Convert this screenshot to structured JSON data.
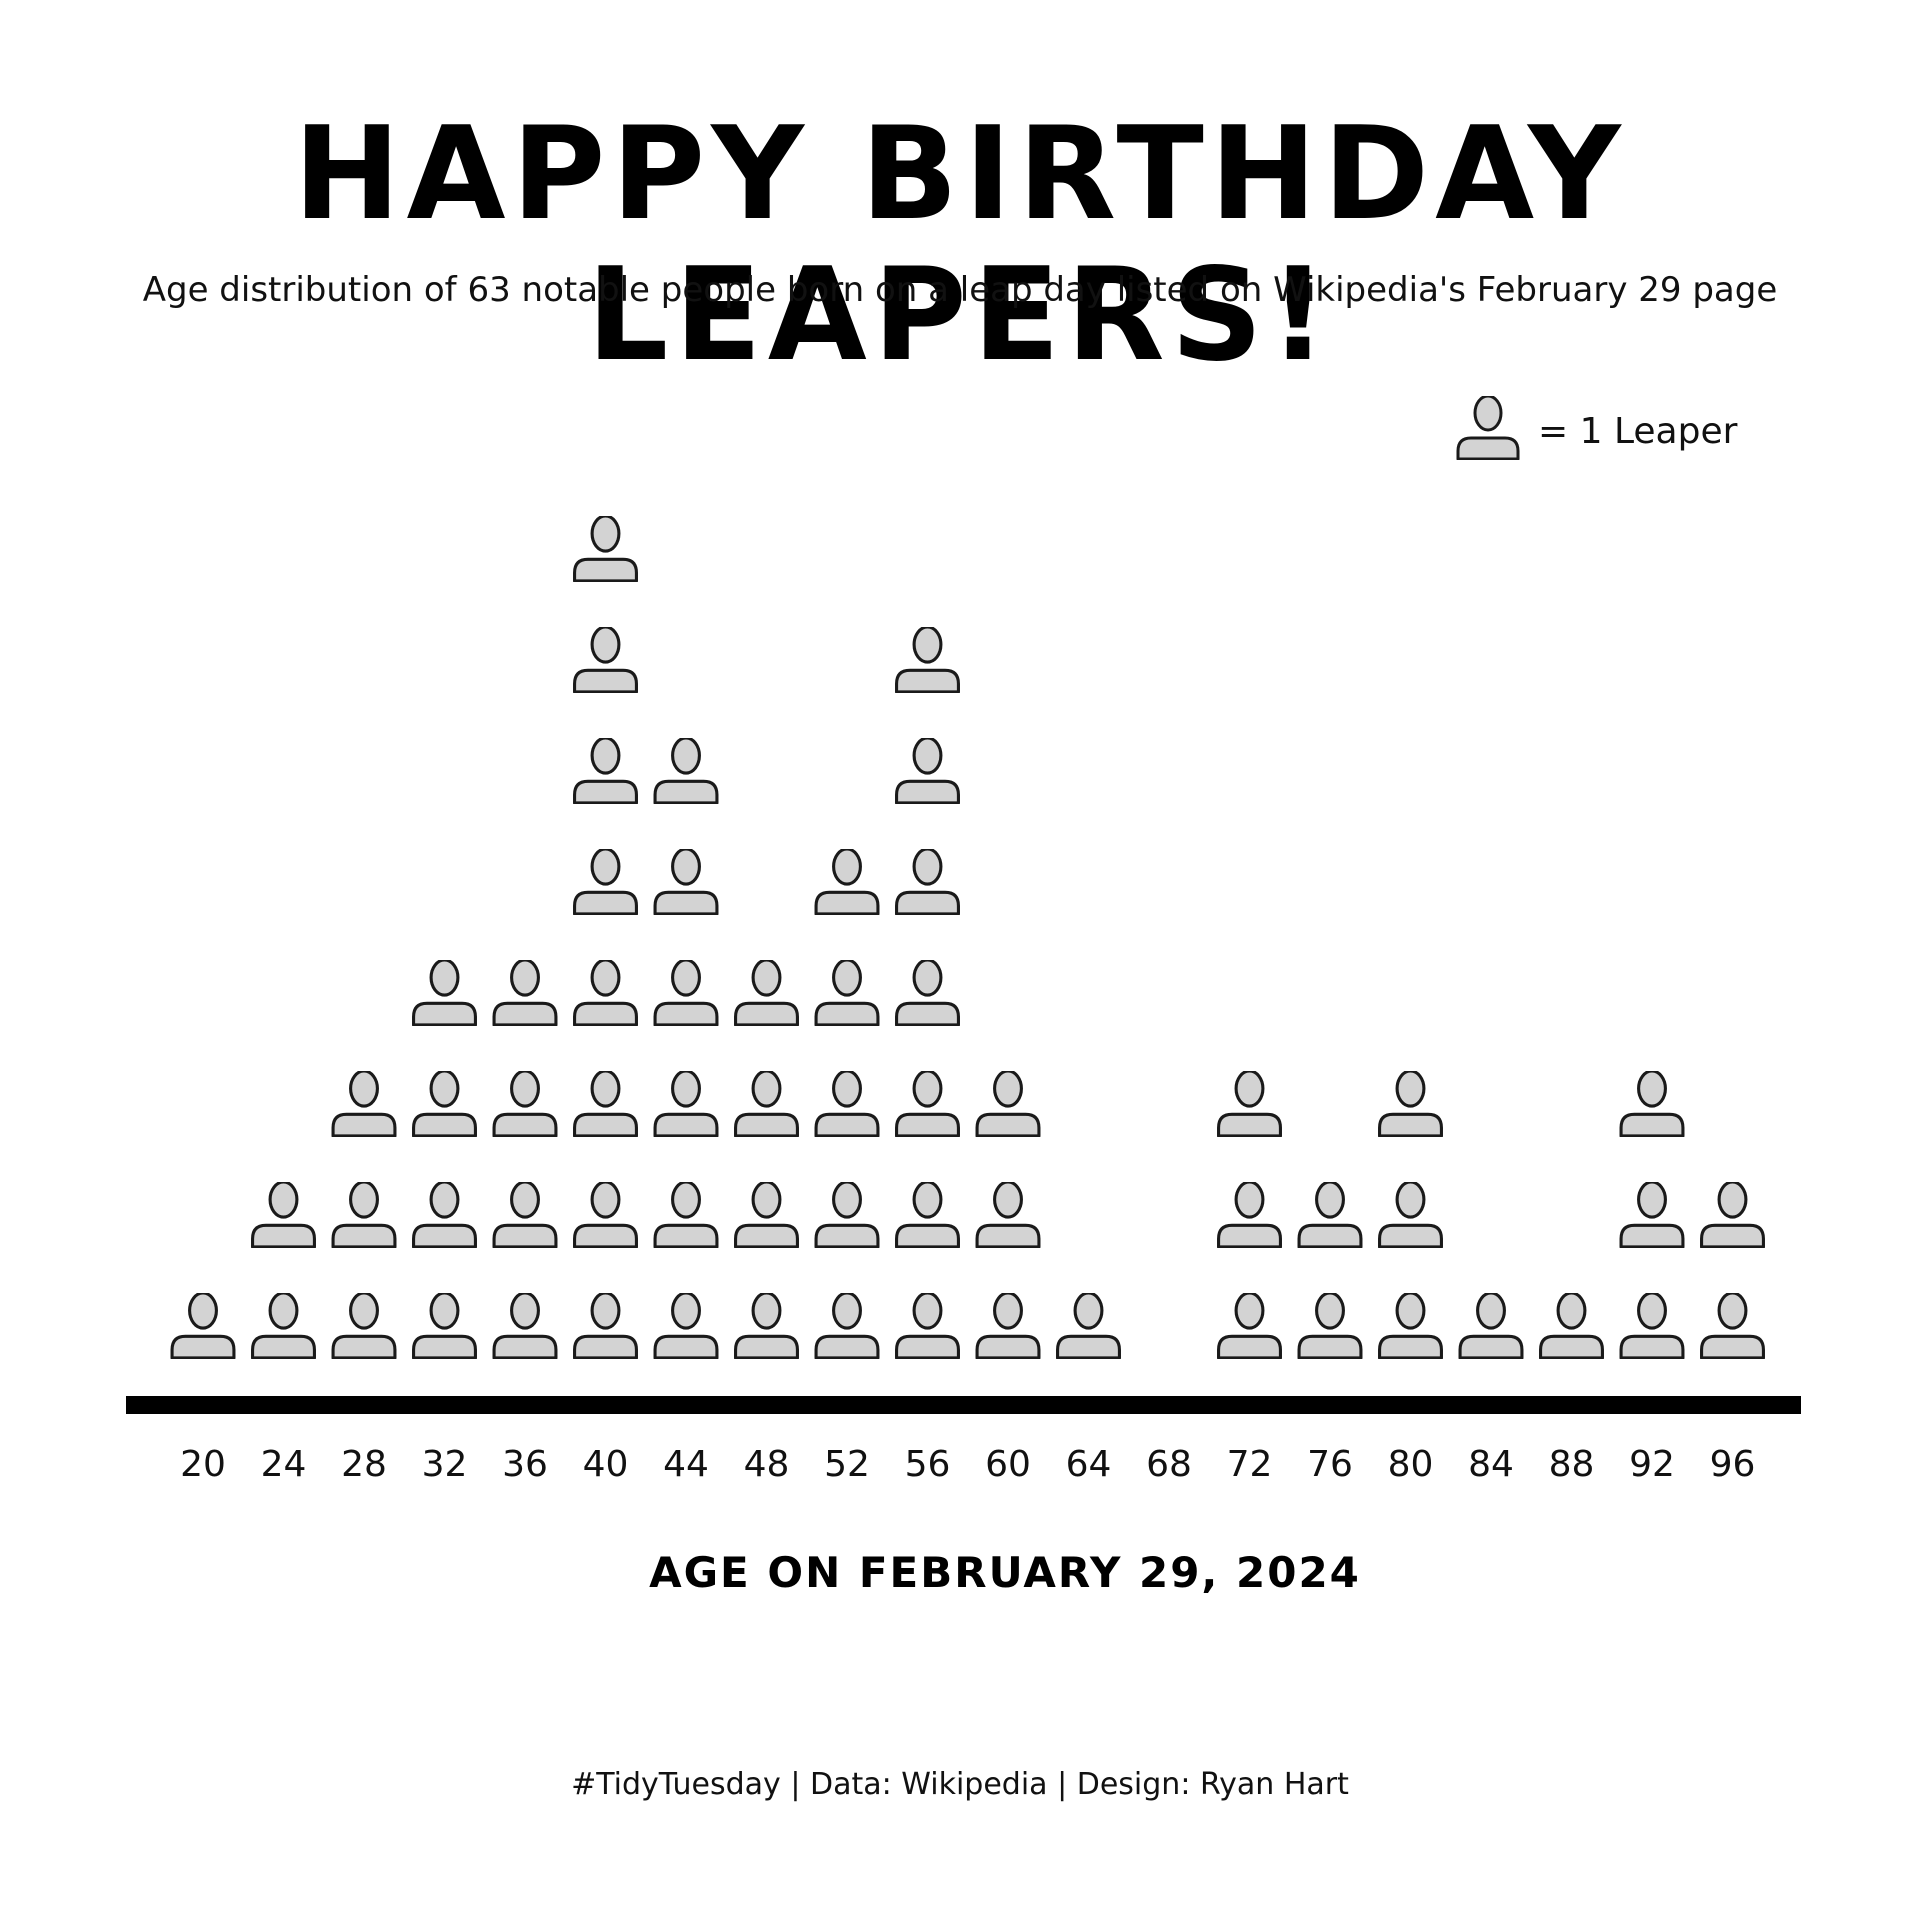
{
  "chart_data": {
    "type": "pictogram",
    "title": "HAPPY BIRTHDAY LEAPERS!",
    "subtitle": "Age distribution of 63 notable people born on a leap day listed on Wikipedia's February 29 page",
    "xlabel": "AGE ON FEBRUARY 29, 2024",
    "ylabel": "",
    "categories": [
      20,
      24,
      28,
      32,
      36,
      40,
      44,
      48,
      52,
      56,
      60,
      64,
      68,
      72,
      76,
      80,
      84,
      88,
      92,
      96
    ],
    "values": [
      1,
      2,
      3,
      4,
      4,
      8,
      6,
      4,
      5,
      7,
      3,
      1,
      0,
      3,
      2,
      3,
      1,
      1,
      3,
      2
    ],
    "legend": {
      "label": "= 1 Leaper",
      "icon": "person-icon",
      "placement": "top-right"
    },
    "caption": "#TidyTuesday | Data: Wikipedia | Design: Ryan Hart",
    "grid": false
  },
  "colors": {
    "background": "#ffffff",
    "icon_fill": "#d3d3d3",
    "icon_stroke": "#1a1a1a",
    "axis_line": "#000000",
    "text": "#111111"
  }
}
